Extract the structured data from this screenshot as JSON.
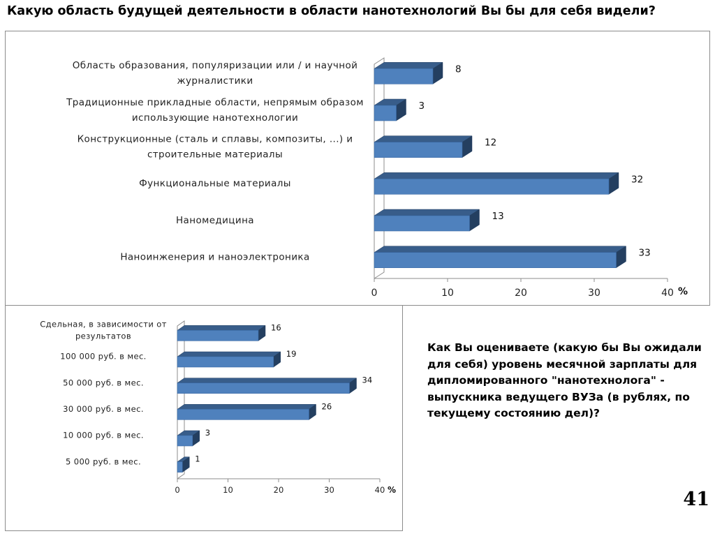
{
  "slide": {
    "title": "Какую область будущей деятельности в области нанотехнологий Вы бы для себя видели?",
    "question": "Как Вы оцениваете (какую бы Вы ожидали для себя) уровень месячной зарплаты для дипломированного \"нанотехнолога\" - выпускника ведущего ВУЗа (в рублях, по текущему состоянию дел)?",
    "page_number": "41"
  },
  "colors": {
    "bar_front": "#4f81bd",
    "bar_top": "#385d8a",
    "bar_side": "#243f60",
    "axis": "#8c8c8c"
  },
  "chart_data": [
    {
      "type": "bar",
      "orientation": "horizontal",
      "categories": [
        [
          "Область образования, популяризации или / и научной",
          "журналистики"
        ],
        [
          "Традиционные прикладные области, непрямым образом",
          "использующие нанотехнологии"
        ],
        [
          "Конструкционные (сталь и сплавы, композиты, ...) и",
          "строительные материалы"
        ],
        [
          "Функциональные материалы"
        ],
        [
          "Наномедицина"
        ],
        [
          "Наноинженерия и наноэлектроника"
        ]
      ],
      "values": [
        8,
        3,
        12,
        32,
        13,
        33
      ],
      "x_ticks": [
        0,
        10,
        20,
        30,
        40
      ],
      "xlim": [
        0,
        40
      ],
      "unit_label": "%",
      "grid": false,
      "legend": false
    },
    {
      "type": "bar",
      "orientation": "horizontal",
      "categories": [
        [
          "Сдельная, в зависимости от",
          "результатов"
        ],
        [
          "100 000 руб. в мес."
        ],
        [
          "50 000 руб. в мес."
        ],
        [
          "30 000 руб. в мес."
        ],
        [
          "10 000 руб. в мес."
        ],
        [
          "5 000 руб. в мес."
        ]
      ],
      "values": [
        16,
        19,
        34,
        26,
        3,
        1
      ],
      "x_ticks": [
        0,
        10,
        20,
        30,
        40
      ],
      "xlim": [
        0,
        40
      ],
      "unit_label": "%",
      "grid": false,
      "legend": false
    }
  ]
}
